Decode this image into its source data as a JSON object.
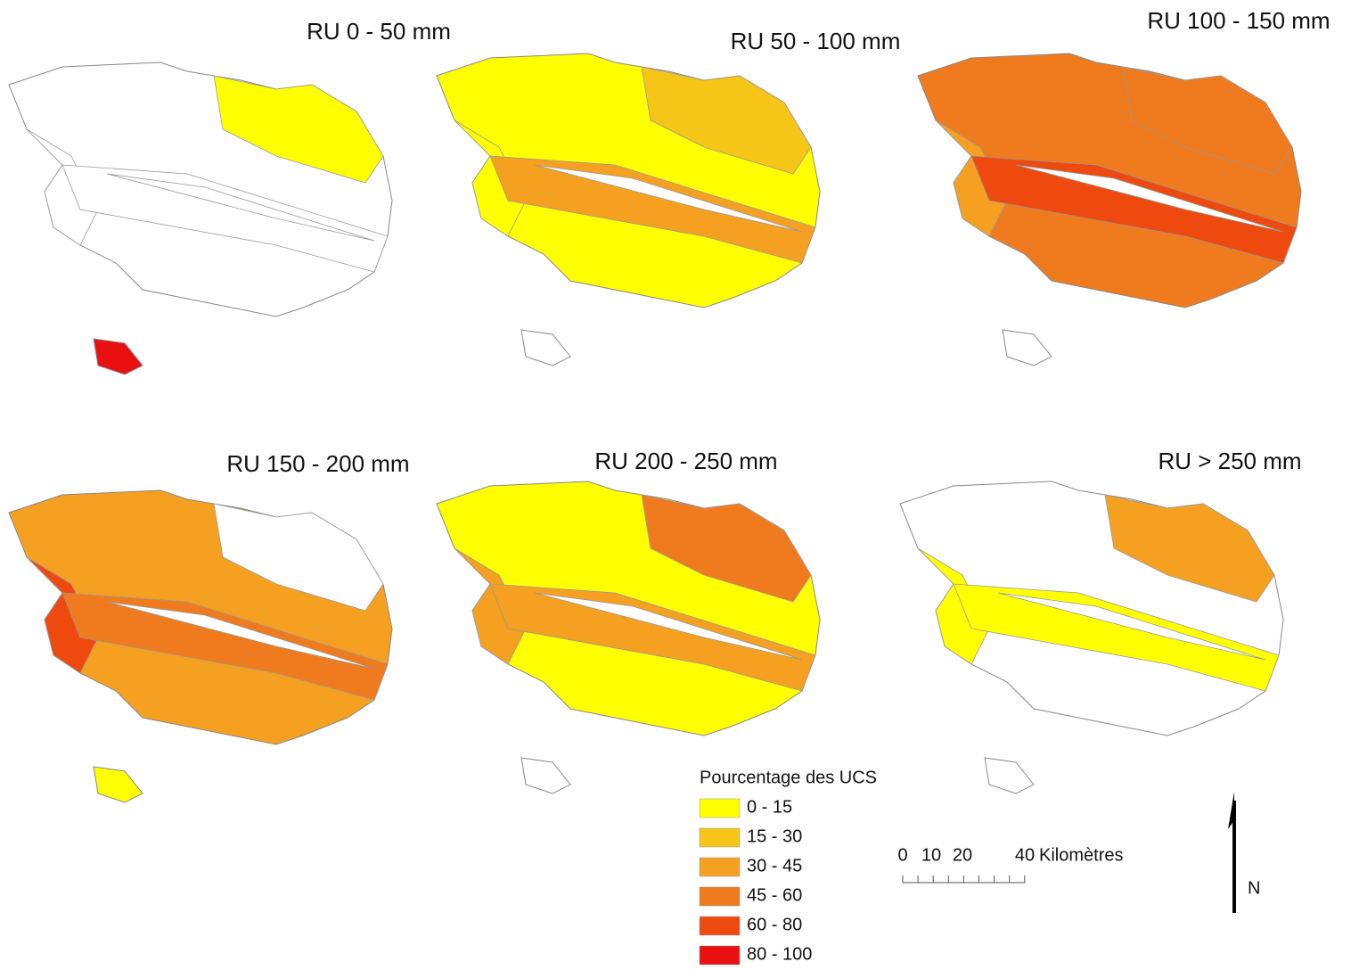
{
  "panels": [
    {
      "title": "RU 0 - 50 mm"
    },
    {
      "title": "RU 50 - 100 mm"
    },
    {
      "title": "RU 100 - 150 mm"
    },
    {
      "title": "RU 150 - 200 mm"
    },
    {
      "title": "RU 200 - 250 mm"
    },
    {
      "title": "RU > 250 mm"
    }
  ],
  "legend": {
    "title": "Pourcentage des UCS",
    "items": [
      {
        "label": "0 - 15",
        "color": "#ffff00"
      },
      {
        "label": "15 - 30",
        "color": "#f5c518"
      },
      {
        "label": "30 - 45",
        "color": "#f5a020"
      },
      {
        "label": "45 - 60",
        "color": "#f07a1e"
      },
      {
        "label": "60 - 80",
        "color": "#ee4a10"
      },
      {
        "label": "80 - 100",
        "color": "#e81010"
      }
    ]
  },
  "scale_bar": {
    "labels": [
      "0",
      "10",
      "20",
      "40"
    ],
    "unit": "Kilomètres"
  },
  "north_arrow": {
    "label": "N"
  }
}
